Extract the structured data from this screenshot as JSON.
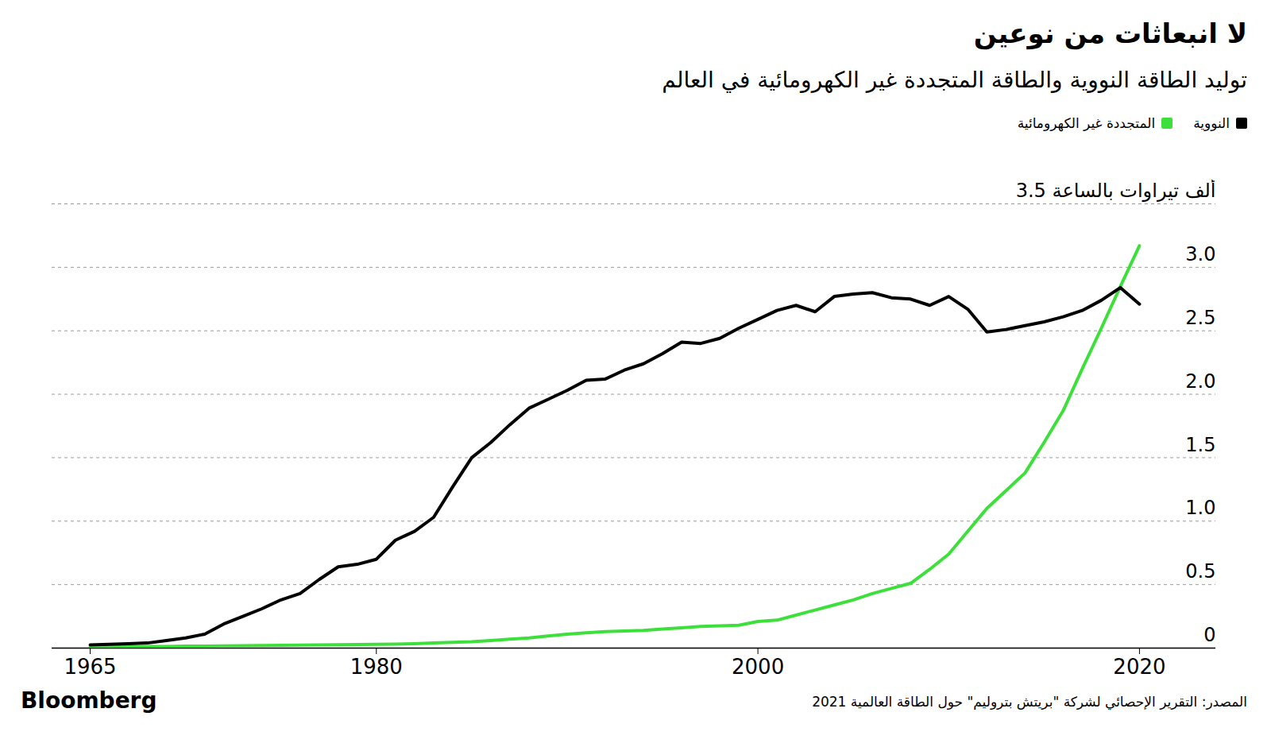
{
  "chart_data": {
    "type": "line",
    "title": "لا انبعاثات من نوعين",
    "subtitle": "توليد الطاقة النووية والطاقة المتجددة غير الكهرومائية في العالم",
    "source": "المصدر: التقرير الإحصائي لشركة \"بريتش بتروليم\" حول الطاقة العالمية 2021",
    "credit": "Bloomberg",
    "x": [
      1965,
      1966,
      1967,
      1968,
      1969,
      1970,
      1971,
      1972,
      1973,
      1974,
      1975,
      1976,
      1977,
      1978,
      1979,
      1980,
      1981,
      1982,
      1983,
      1984,
      1985,
      1986,
      1987,
      1988,
      1989,
      1990,
      1991,
      1992,
      1993,
      1994,
      1995,
      1996,
      1997,
      1998,
      1999,
      2000,
      2001,
      2002,
      2003,
      2004,
      2005,
      2006,
      2007,
      2008,
      2009,
      2010,
      2011,
      2012,
      2013,
      2014,
      2015,
      2016,
      2017,
      2018,
      2019,
      2020
    ],
    "series": [
      {
        "name": "المتجددة غير الكهرومائية",
        "color": "#3de03a",
        "values": [
          0.01,
          0.01,
          0.01,
          0.012,
          0.013,
          0.015,
          0.016,
          0.018,
          0.019,
          0.02,
          0.022,
          0.023,
          0.025,
          0.027,
          0.028,
          0.03,
          0.032,
          0.035,
          0.04,
          0.045,
          0.05,
          0.06,
          0.07,
          0.08,
          0.095,
          0.11,
          0.12,
          0.13,
          0.135,
          0.14,
          0.15,
          0.16,
          0.17,
          0.175,
          0.18,
          0.21,
          0.22,
          0.26,
          0.3,
          0.34,
          0.38,
          0.43,
          0.47,
          0.51,
          0.62,
          0.74,
          0.92,
          1.1,
          1.24,
          1.38,
          1.62,
          1.87,
          2.2,
          2.52,
          2.85,
          3.17
        ]
      },
      {
        "name": "النووية",
        "color": "#000000",
        "values": [
          0.025,
          0.03,
          0.035,
          0.04,
          0.06,
          0.08,
          0.11,
          0.19,
          0.25,
          0.31,
          0.38,
          0.43,
          0.54,
          0.64,
          0.66,
          0.7,
          0.85,
          0.92,
          1.03,
          1.27,
          1.5,
          1.62,
          1.76,
          1.89,
          1.96,
          2.03,
          2.11,
          2.12,
          2.19,
          2.24,
          2.32,
          2.41,
          2.4,
          2.44,
          2.52,
          2.59,
          2.66,
          2.7,
          2.65,
          2.77,
          2.79,
          2.8,
          2.76,
          2.75,
          2.7,
          2.77,
          2.67,
          2.49,
          2.51,
          2.54,
          2.57,
          2.61,
          2.66,
          2.74,
          2.84,
          2.71
        ]
      }
    ],
    "xlim": [
      1963,
      2024
    ],
    "xticks": [
      1965,
      1980,
      2000,
      2020
    ],
    "ylim": [
      0,
      3.5
    ],
    "yticks": [
      0,
      0.5,
      {
        "value": 1,
        "label": "1.0"
      },
      1.5,
      {
        "value": 2,
        "label": "2.0"
      },
      2.5,
      {
        "value": 3,
        "label": "3.0"
      },
      {
        "value": 3.5,
        "label": "3.5 ألف تيراوات بالساعة"
      }
    ],
    "grid": true,
    "legend": "top-right"
  }
}
